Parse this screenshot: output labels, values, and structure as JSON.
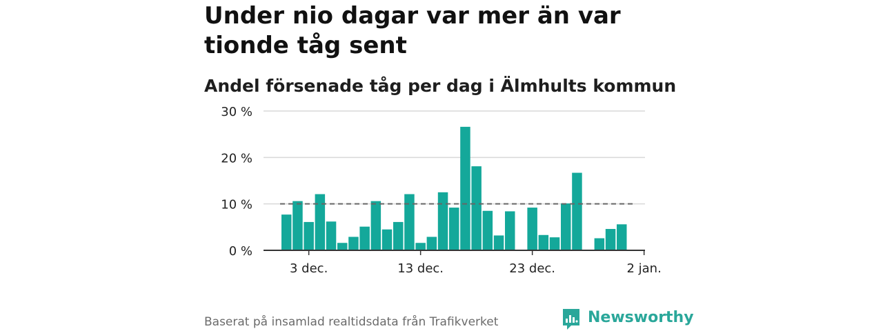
{
  "title": "Under nio dagar var mer än var tionde tåg sent",
  "subtitle": "Andel försenade tåg per dag i Älmhults kommun",
  "source": "Baserat på insamlad realtidsdata från Trafikverket",
  "brand": {
    "name": "Newsworthy",
    "logo_icon": "newsworthy-logo-icon",
    "color": "#2aa79a"
  },
  "chart_data": {
    "type": "bar",
    "color": "#14a89a",
    "reference_line": {
      "value": 10,
      "style": "dashed",
      "color": "#666666"
    },
    "ylim": [
      0,
      30
    ],
    "yticks": [
      {
        "value": 0,
        "label": "0 %"
      },
      {
        "value": 10,
        "label": "10 %"
      },
      {
        "value": 20,
        "label": "20 %"
      },
      {
        "value": 30,
        "label": "30 %"
      }
    ],
    "xticks": [
      {
        "day_index": 2,
        "label": "3 dec."
      },
      {
        "day_index": 12,
        "label": "13 dec."
      },
      {
        "day_index": 22,
        "label": "23 dec."
      },
      {
        "day_index": 32,
        "label": "2 jan."
      }
    ],
    "dates": [
      "1 dec.",
      "2 dec.",
      "3 dec.",
      "4 dec.",
      "5 dec.",
      "6 dec.",
      "7 dec.",
      "8 dec.",
      "9 dec.",
      "10 dec.",
      "11 dec.",
      "12 dec.",
      "13 dec.",
      "14 dec.",
      "15 dec.",
      "16 dec.",
      "17 dec.",
      "18 dec.",
      "19 dec.",
      "20 dec.",
      "21 dec.",
      "22 dec.",
      "23 dec.",
      "24 dec.",
      "25 dec.",
      "26 dec.",
      "27 dec.",
      "28 dec.",
      "29 dec.",
      "30 dec.",
      "31 dec."
    ],
    "values": [
      7.7,
      10.6,
      6.1,
      12.1,
      6.2,
      1.6,
      2.9,
      5.1,
      10.6,
      4.5,
      6.1,
      12.1,
      1.6,
      2.9,
      12.5,
      9.2,
      26.6,
      18.1,
      8.5,
      3.2,
      8.4,
      null,
      9.2,
      3.3,
      2.8,
      10.1,
      16.7,
      null,
      2.6,
      4.6,
      5.6
    ]
  }
}
